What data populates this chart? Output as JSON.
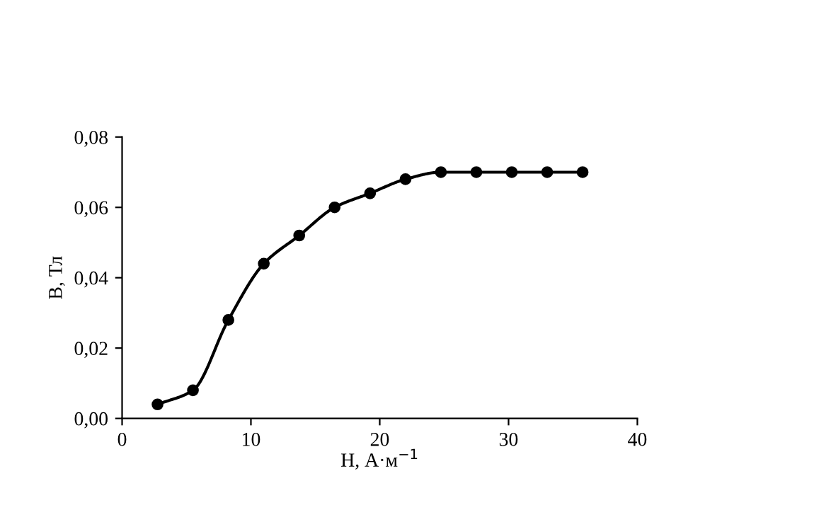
{
  "chart_data": {
    "type": "line",
    "xlabel": "H, А·м$^{−1}$",
    "ylabel": "B, Тл",
    "x": [
      2.75,
      5.5,
      8.25,
      11,
      13.75,
      16.5,
      19.25,
      22,
      24.75,
      27.5,
      30.25,
      33,
      35.75
    ],
    "series": [
      {
        "color": "#000000",
        "values": [
          0.004,
          0.008,
          0.028,
          0.044,
          0.052,
          0.06,
          0.064,
          0.068,
          0.07,
          0.07,
          0.07,
          0.07,
          0.07
        ]
      }
    ],
    "marker": "circle",
    "line_style": "solid",
    "grid": false,
    "legend": false,
    "xlim": [
      0,
      40
    ],
    "xticks": [
      0,
      10,
      20,
      30,
      40
    ],
    "ylim": [
      0,
      0.08
    ],
    "yticks": [
      {
        "value": 0,
        "label": "0,00"
      },
      {
        "value": 0.02,
        "label": "0,02"
      },
      {
        "value": 0.04,
        "label": "0,04"
      },
      {
        "value": 0.06,
        "label": "0,06"
      },
      {
        "value": 0.08,
        "label": "0,08"
      }
    ]
  }
}
